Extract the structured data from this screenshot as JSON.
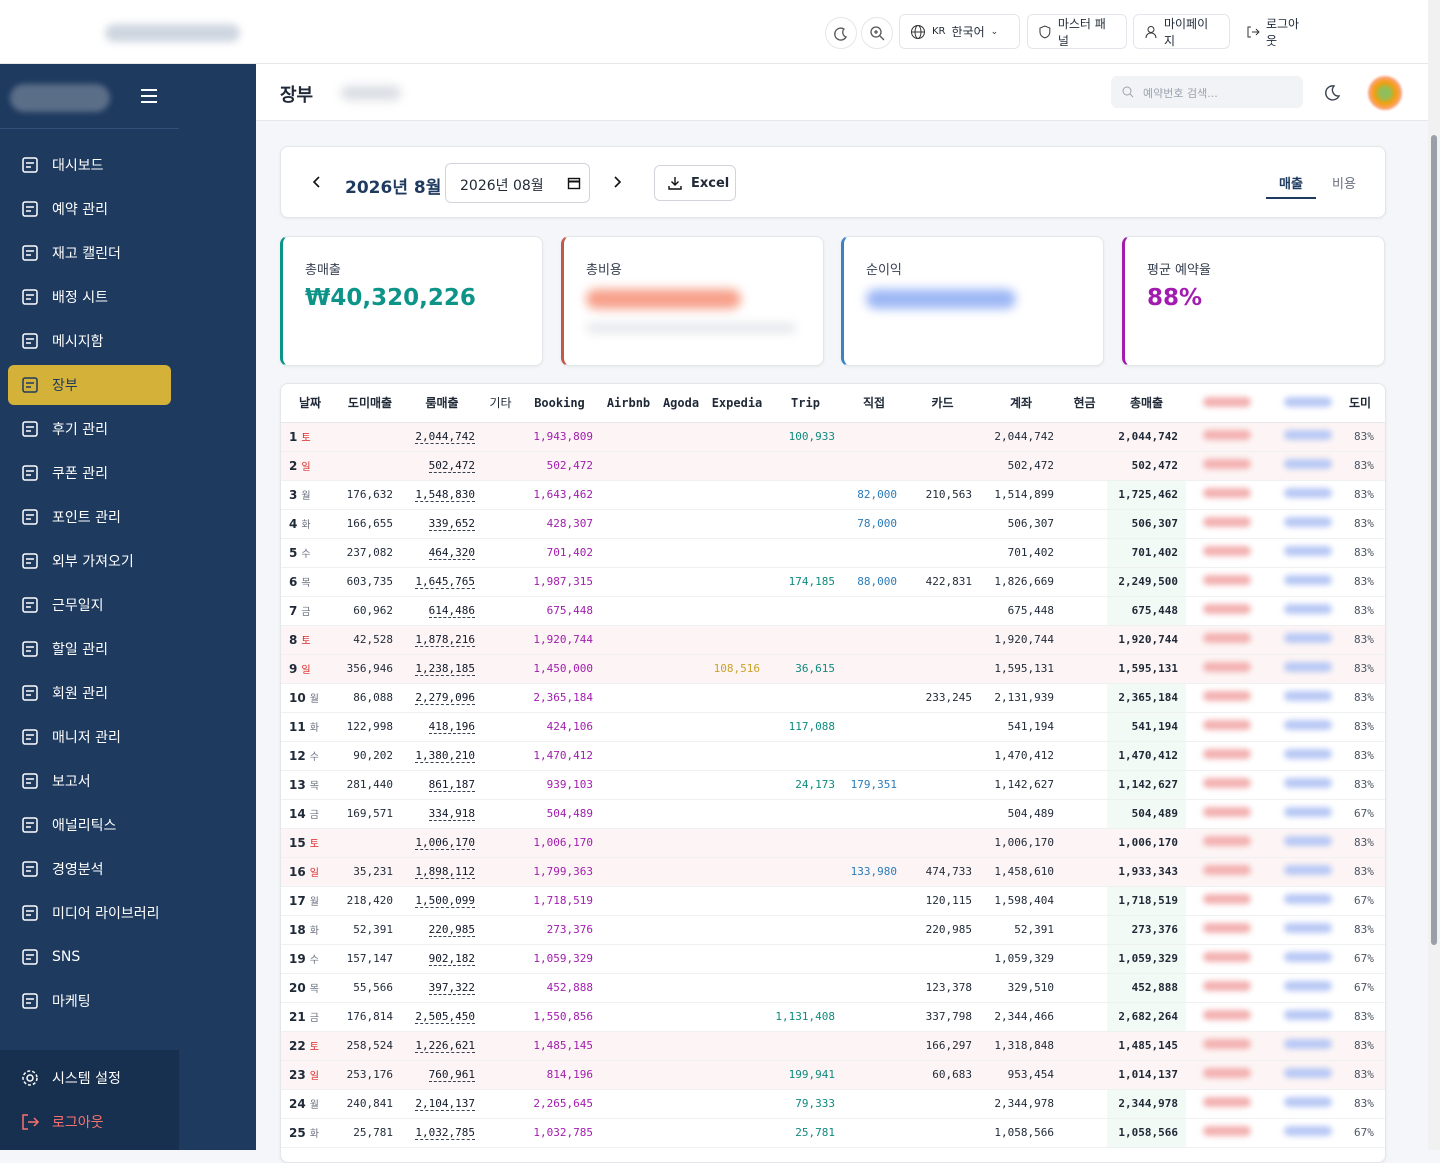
{
  "topbar": {
    "language_code": "KR",
    "language": "한국어",
    "master_panel": "마스터 패널",
    "mypage": "마이페이지",
    "logout": "로그아웃"
  },
  "sidebar": {
    "items": [
      "대시보드",
      "예약 관리",
      "재고 캘린더",
      "배정 시트",
      "메시지함",
      "장부",
      "후기 관리",
      "쿠폰 관리",
      "포인트 관리",
      "외부 가져오기",
      "근무일지",
      "할일 관리",
      "회원 관리",
      "매니저 관리",
      "보고서",
      "애널리틱스",
      "경영분석",
      "미디어 라이브러리",
      "SNS",
      "마케팅"
    ],
    "active": 5,
    "settings": "시스템 설정",
    "logout": "로그아웃"
  },
  "header": {
    "title": "장부",
    "search_placeholder": "예약번호 검색..."
  },
  "toolbar": {
    "month_title": "2026년 8월",
    "month_input": "2026년 08월",
    "excel": "Excel",
    "tabs": [
      "매출",
      "비용"
    ]
  },
  "cards": [
    {
      "label": "총매출",
      "value": "₩40,320,226"
    },
    {
      "label": "총비용"
    },
    {
      "label": "순이익"
    },
    {
      "label": "평균 예약율",
      "value": "88%"
    }
  ],
  "table": {
    "header": [
      "날짜",
      "도미매출",
      "룸매출",
      "기타",
      "Booking",
      "Airbnb",
      "Agoda",
      "Expedia",
      "Trip",
      "직접",
      "카드",
      "계좌",
      "현금",
      "총매출",
      "도미"
    ],
    "rows": [
      [
        "1",
        "토",
        null,
        "2,044,742",
        null,
        "1,943,809",
        null,
        null,
        null,
        "100,933",
        null,
        null,
        "2,044,742",
        null,
        "2,044,742",
        "83%"
      ],
      [
        "2",
        "일",
        null,
        "502,472",
        null,
        "502,472",
        null,
        null,
        null,
        null,
        null,
        null,
        "502,472",
        null,
        "502,472",
        "83%"
      ],
      [
        "3",
        "월",
        "176,632",
        "1,548,830",
        null,
        "1,643,462",
        null,
        null,
        null,
        null,
        "82,000",
        "210,563",
        "1,514,899",
        null,
        "1,725,462",
        "83%"
      ],
      [
        "4",
        "화",
        "166,655",
        "339,652",
        null,
        "428,307",
        null,
        null,
        null,
        null,
        "78,000",
        null,
        "506,307",
        null,
        "506,307",
        "83%"
      ],
      [
        "5",
        "수",
        "237,082",
        "464,320",
        null,
        "701,402",
        null,
        null,
        null,
        null,
        null,
        null,
        "701,402",
        null,
        "701,402",
        "83%"
      ],
      [
        "6",
        "목",
        "603,735",
        "1,645,765",
        null,
        "1,987,315",
        null,
        null,
        null,
        "174,185",
        "88,000",
        "422,831",
        "1,826,669",
        null,
        "2,249,500",
        "83%"
      ],
      [
        "7",
        "금",
        "60,962",
        "614,486",
        null,
        "675,448",
        null,
        null,
        null,
        null,
        null,
        null,
        "675,448",
        null,
        "675,448",
        "83%"
      ],
      [
        "8",
        "토",
        "42,528",
        "1,878,216",
        null,
        "1,920,744",
        null,
        null,
        null,
        null,
        null,
        null,
        "1,920,744",
        null,
        "1,920,744",
        "83%"
      ],
      [
        "9",
        "일",
        "356,946",
        "1,238,185",
        null,
        "1,450,000",
        null,
        null,
        "108,516",
        "36,615",
        null,
        null,
        "1,595,131",
        null,
        "1,595,131",
        "83%"
      ],
      [
        "10",
        "월",
        "86,088",
        "2,279,096",
        null,
        "2,365,184",
        null,
        null,
        null,
        null,
        null,
        "233,245",
        "2,131,939",
        null,
        "2,365,184",
        "83%"
      ],
      [
        "11",
        "화",
        "122,998",
        "418,196",
        null,
        "424,106",
        null,
        null,
        null,
        "117,088",
        null,
        null,
        "541,194",
        null,
        "541,194",
        "83%"
      ],
      [
        "12",
        "수",
        "90,202",
        "1,380,210",
        null,
        "1,470,412",
        null,
        null,
        null,
        null,
        null,
        null,
        "1,470,412",
        null,
        "1,470,412",
        "83%"
      ],
      [
        "13",
        "목",
        "281,440",
        "861,187",
        null,
        "939,103",
        null,
        null,
        null,
        "24,173",
        "179,351",
        null,
        "1,142,627",
        null,
        "1,142,627",
        "83%"
      ],
      [
        "14",
        "금",
        "169,571",
        "334,918",
        null,
        "504,489",
        null,
        null,
        null,
        null,
        null,
        null,
        "504,489",
        null,
        "504,489",
        "67%"
      ],
      [
        "15",
        "토",
        null,
        "1,006,170",
        null,
        "1,006,170",
        null,
        null,
        null,
        null,
        null,
        null,
        "1,006,170",
        null,
        "1,006,170",
        "83%"
      ],
      [
        "16",
        "일",
        "35,231",
        "1,898,112",
        null,
        "1,799,363",
        null,
        null,
        null,
        null,
        "133,980",
        "474,733",
        "1,458,610",
        null,
        "1,933,343",
        "83%"
      ],
      [
        "17",
        "월",
        "218,420",
        "1,500,099",
        null,
        "1,718,519",
        null,
        null,
        null,
        null,
        null,
        "120,115",
        "1,598,404",
        null,
        "1,718,519",
        "67%"
      ],
      [
        "18",
        "화",
        "52,391",
        "220,985",
        null,
        "273,376",
        null,
        null,
        null,
        null,
        null,
        "220,985",
        "52,391",
        null,
        "273,376",
        "83%"
      ],
      [
        "19",
        "수",
        "157,147",
        "902,182",
        null,
        "1,059,329",
        null,
        null,
        null,
        null,
        null,
        null,
        "1,059,329",
        null,
        "1,059,329",
        "67%"
      ],
      [
        "20",
        "목",
        "55,566",
        "397,322",
        null,
        "452,888",
        null,
        null,
        null,
        null,
        null,
        "123,378",
        "329,510",
        null,
        "452,888",
        "67%"
      ],
      [
        "21",
        "금",
        "176,814",
        "2,505,450",
        null,
        "1,550,856",
        null,
        null,
        null,
        "1,131,408",
        null,
        "337,798",
        "2,344,466",
        null,
        "2,682,264",
        "83%"
      ],
      [
        "22",
        "토",
        "258,524",
        "1,226,621",
        null,
        "1,485,145",
        null,
        null,
        null,
        null,
        null,
        "166,297",
        "1,318,848",
        null,
        "1,485,145",
        "83%"
      ],
      [
        "23",
        "일",
        "253,176",
        "760,961",
        null,
        "814,196",
        null,
        null,
        null,
        "199,941",
        null,
        "60,683",
        "953,454",
        null,
        "1,014,137",
        "83%"
      ],
      [
        "24",
        "월",
        "240,841",
        "2,104,137",
        null,
        "2,265,645",
        null,
        null,
        null,
        "79,333",
        null,
        null,
        "2,344,978",
        null,
        "2,344,978",
        "83%"
      ],
      [
        "25",
        "화",
        "25,781",
        "1,032,785",
        null,
        "1,032,785",
        null,
        null,
        null,
        "25,781",
        null,
        null,
        "1,058,566",
        null,
        "1,058,566",
        "67%"
      ]
    ]
  }
}
